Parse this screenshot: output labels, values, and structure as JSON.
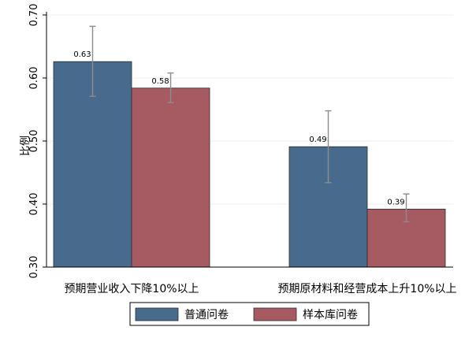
{
  "chart_data": {
    "type": "bar",
    "categories": [
      "预期营业收入下降10%以上",
      "预期原材料和经营成本上升10%以上"
    ],
    "series": [
      {
        "name": "普通问卷",
        "color": "#486b8d",
        "values": [
          0.626,
          0.491
        ],
        "ci_low": [
          0.571,
          0.434
        ],
        "ci_high": [
          0.682,
          0.548
        ],
        "labels": [
          "0.63",
          "0.49"
        ]
      },
      {
        "name": "样本库问卷",
        "color": "#a65a62",
        "values": [
          0.584,
          0.392
        ],
        "ci_low": [
          0.561,
          0.372
        ],
        "ci_high": [
          0.608,
          0.416
        ],
        "labels": [
          "0.58",
          "0.39"
        ]
      }
    ],
    "ylabel": "比例",
    "ylim": [
      0.3,
      0.7
    ],
    "yticks": [
      0.3,
      0.4,
      0.5,
      0.6,
      0.7
    ],
    "ytick_labels": [
      "0.30",
      "0.40",
      "0.50",
      "0.60",
      "0.70"
    ],
    "grid": true,
    "legend": "bottom",
    "error_bar_color": "#8c8c8c"
  }
}
